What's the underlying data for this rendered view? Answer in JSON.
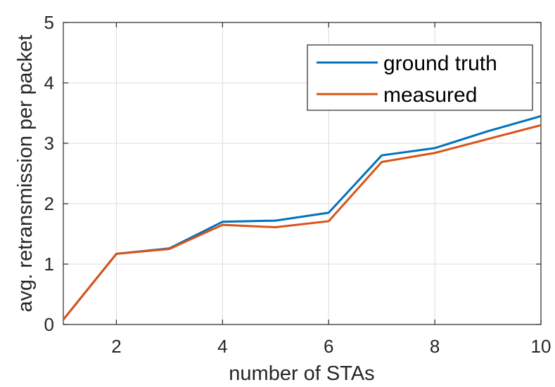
{
  "chart_data": {
    "type": "line",
    "xlabel": "number of STAs",
    "ylabel": "avg. retransmission per packet",
    "xlim": [
      1,
      10
    ],
    "ylim": [
      0,
      5
    ],
    "xticks": [
      2,
      4,
      6,
      8,
      10
    ],
    "yticks": [
      0,
      1,
      2,
      3,
      4,
      5
    ],
    "grid": true,
    "legend_position": "top-right",
    "x": [
      1,
      2,
      3,
      4,
      5,
      6,
      7,
      8,
      9,
      10
    ],
    "series": [
      {
        "name": "ground truth",
        "color": "#0072BD",
        "values": [
          0.08,
          1.17,
          1.26,
          1.7,
          1.72,
          1.85,
          2.8,
          2.92,
          3.2,
          3.45
        ]
      },
      {
        "name": "measured",
        "color": "#D95319",
        "values": [
          0.08,
          1.17,
          1.25,
          1.65,
          1.61,
          1.71,
          2.69,
          2.84,
          3.07,
          3.3
        ]
      }
    ]
  }
}
